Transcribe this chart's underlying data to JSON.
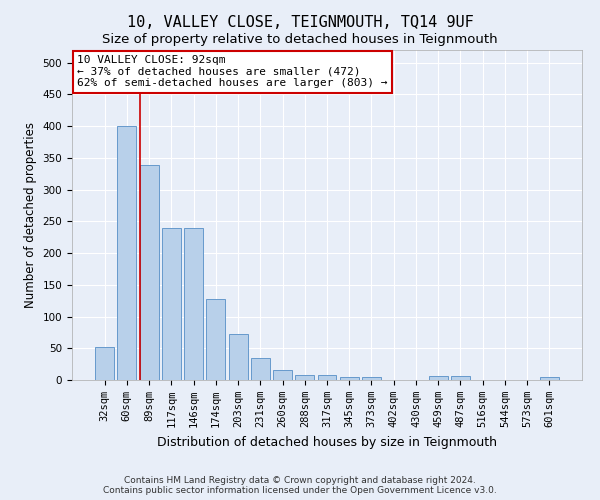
{
  "title": "10, VALLEY CLOSE, TEIGNMOUTH, TQ14 9UF",
  "subtitle": "Size of property relative to detached houses in Teignmouth",
  "xlabel": "Distribution of detached houses by size in Teignmouth",
  "ylabel": "Number of detached properties",
  "categories": [
    "32sqm",
    "60sqm",
    "89sqm",
    "117sqm",
    "146sqm",
    "174sqm",
    "203sqm",
    "231sqm",
    "260sqm",
    "288sqm",
    "317sqm",
    "345sqm",
    "373sqm",
    "402sqm",
    "430sqm",
    "459sqm",
    "487sqm",
    "516sqm",
    "544sqm",
    "573sqm",
    "601sqm"
  ],
  "values": [
    52,
    400,
    338,
    240,
    240,
    128,
    72,
    35,
    16,
    8,
    8,
    5,
    5,
    0,
    0,
    7,
    7,
    0,
    0,
    0,
    5
  ],
  "bar_color": "#b8d0ea",
  "bar_edge_color": "#6699cc",
  "annotation_line1": "10 VALLEY CLOSE: 92sqm",
  "annotation_line2": "← 37% of detached houses are smaller (472)",
  "annotation_line3": "62% of semi-detached houses are larger (803) →",
  "annotation_box_color": "#ffffff",
  "annotation_box_edge_color": "#cc0000",
  "vline_x": 2,
  "vline_color": "#cc0000",
  "ylim": [
    0,
    520
  ],
  "yticks": [
    0,
    50,
    100,
    150,
    200,
    250,
    300,
    350,
    400,
    450,
    500
  ],
  "footer_text": "Contains HM Land Registry data © Crown copyright and database right 2024.\nContains public sector information licensed under the Open Government Licence v3.0.",
  "background_color": "#e8eef8",
  "plot_bg_color": "#e8eef8",
  "grid_color": "#ffffff",
  "title_fontsize": 11,
  "subtitle_fontsize": 9.5,
  "ylabel_fontsize": 8.5,
  "xlabel_fontsize": 9,
  "tick_fontsize": 7.5,
  "annotation_fontsize": 8,
  "footer_fontsize": 6.5
}
